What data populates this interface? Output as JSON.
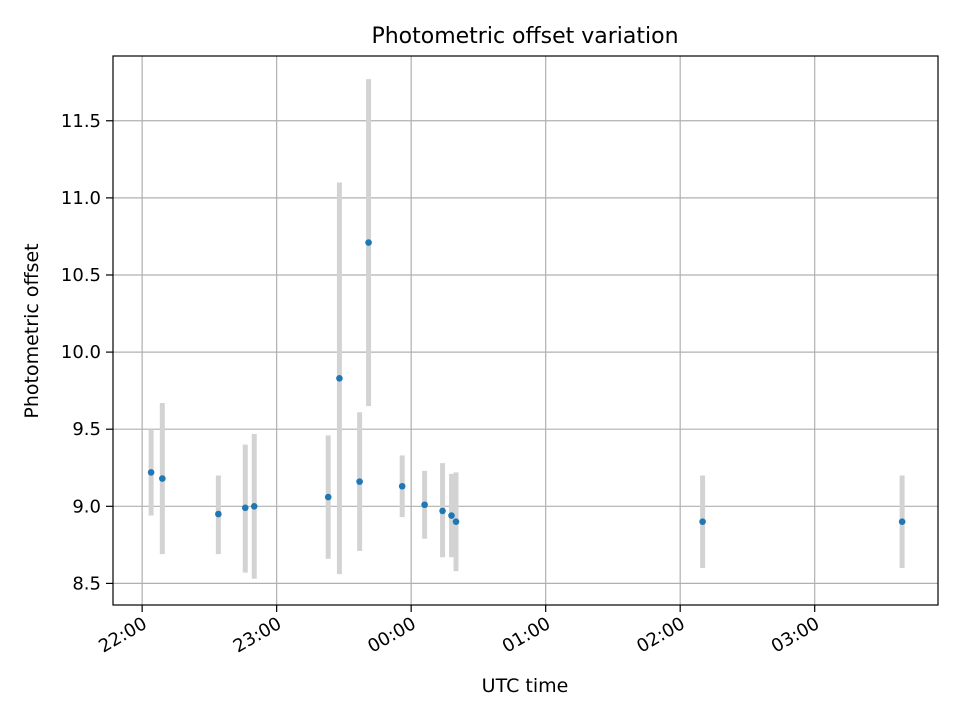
{
  "chart_data": {
    "type": "scatter",
    "title": "Photometric offset variation",
    "xlabel": "UTC time",
    "ylabel": "Photometric offset",
    "x_axis_type": "time",
    "xlim": [
      "21:47",
      "03:55"
    ],
    "ylim": [
      8.36,
      11.92
    ],
    "x_ticks": [
      "22:00",
      "23:00",
      "00:00",
      "01:00",
      "02:00",
      "03:00"
    ],
    "y_ticks": [
      "8.5",
      "9.0",
      "9.5",
      "10.0",
      "10.5",
      "11.0",
      "11.5"
    ],
    "grid": true,
    "legend": "none",
    "point_color": "#1f77b4",
    "errorbar_color": "#d3d3d3",
    "points": [
      {
        "time": "22:04",
        "y": 9.22,
        "ylow": 8.94,
        "yhigh": 9.5
      },
      {
        "time": "22:09",
        "y": 9.18,
        "ylow": 8.69,
        "yhigh": 9.67
      },
      {
        "time": "22:34",
        "y": 8.95,
        "ylow": 8.69,
        "yhigh": 9.2
      },
      {
        "time": "22:46",
        "y": 8.99,
        "ylow": 8.57,
        "yhigh": 9.4
      },
      {
        "time": "22:50",
        "y": 9.0,
        "ylow": 8.53,
        "yhigh": 9.47
      },
      {
        "time": "23:23",
        "y": 9.06,
        "ylow": 8.66,
        "yhigh": 9.46
      },
      {
        "time": "23:28",
        "y": 9.83,
        "ylow": 8.56,
        "yhigh": 11.1
      },
      {
        "time": "23:37",
        "y": 9.16,
        "ylow": 8.71,
        "yhigh": 9.61
      },
      {
        "time": "23:41",
        "y": 10.71,
        "ylow": 9.65,
        "yhigh": 11.77
      },
      {
        "time": "23:56",
        "y": 9.13,
        "ylow": 8.93,
        "yhigh": 9.33
      },
      {
        "time": "00:06",
        "y": 9.01,
        "ylow": 8.79,
        "yhigh": 9.23
      },
      {
        "time": "00:14",
        "y": 8.97,
        "ylow": 8.67,
        "yhigh": 9.28
      },
      {
        "time": "00:18",
        "y": 8.94,
        "ylow": 8.67,
        "yhigh": 9.21
      },
      {
        "time": "00:20",
        "y": 8.9,
        "ylow": 8.58,
        "yhigh": 9.22
      },
      {
        "time": "02:10",
        "y": 8.9,
        "ylow": 8.6,
        "yhigh": 9.2
      },
      {
        "time": "03:39",
        "y": 8.9,
        "ylow": 8.6,
        "yhigh": 9.2
      }
    ]
  }
}
